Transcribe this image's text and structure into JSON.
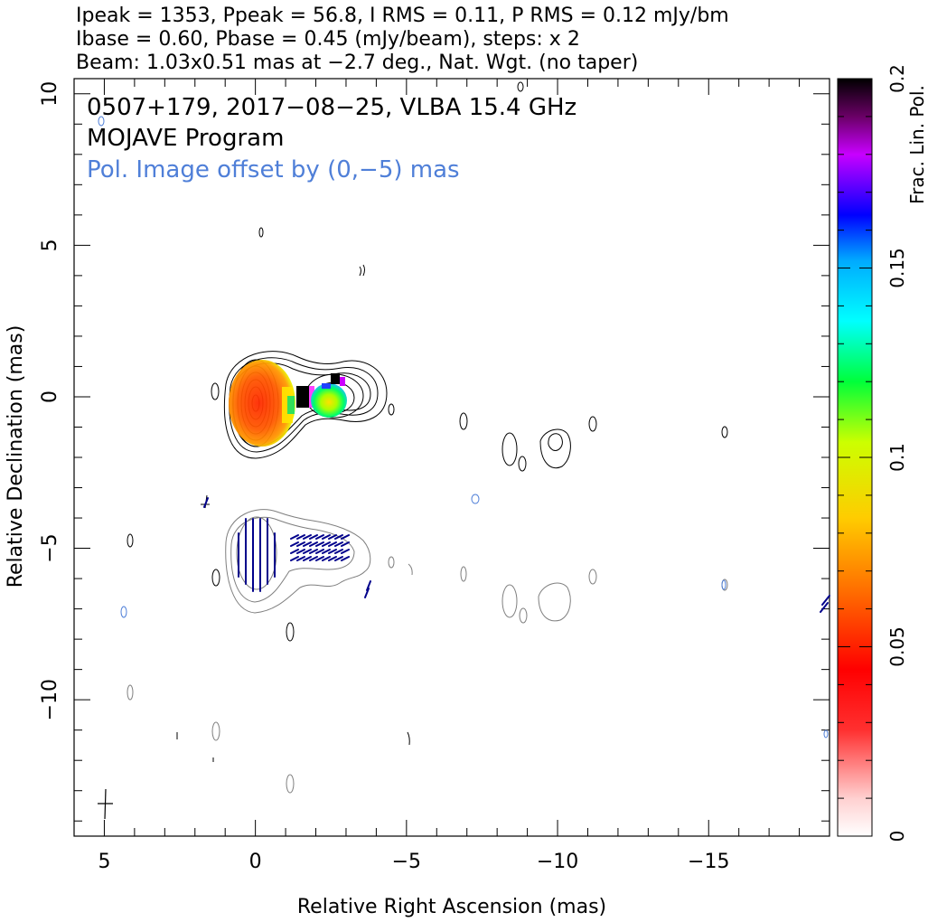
{
  "header": {
    "line1": "Ipeak = 1353, Ppeak = 56.8, I RMS = 0.11, P RMS = 0.12 mJy/bm",
    "line2": "Ibase = 0.60, Pbase = 0.45 (mJy/beam), steps: x 2",
    "line3": "Beam: 1.03x0.51 mas at −2.7 deg., Nat. Wgt. (no taper)"
  },
  "plot": {
    "title_line1": "0507+179, 2017−08−25, VLBA 15.4 GHz",
    "title_line2": "MOJAVE Program",
    "title_line3": "Pol. Image offset by (0,−5) mas"
  },
  "colorbar": {
    "label": "Frac. Lin. Pol.",
    "ticks": [
      "0",
      "0.05",
      "0.1",
      "0.15",
      "0.2"
    ]
  },
  "colors": {
    "total_intensity_contours": "#000000",
    "polarization_contours": "#7f7f7f",
    "evpa_ticks": "#00008b",
    "offset_label": "#4f7fd8"
  },
  "chart_data": {
    "type": "contour",
    "title": "0507+179, 2017−08−25, VLBA 15.4 GHz",
    "xlabel": "Relative Right Ascension (mas)",
    "ylabel": "Relative Declination (mas)",
    "xlim": [
      6,
      -19
    ],
    "ylim": [
      -14.5,
      10.5
    ],
    "x_ticks": [
      5,
      0,
      -5,
      -10,
      -15
    ],
    "y_ticks": [
      10,
      5,
      0,
      -5,
      -10
    ],
    "x_tick_labels": [
      "5",
      "0",
      "−5",
      "−10",
      "−15"
    ],
    "y_tick_labels": [
      "10",
      "5",
      "0",
      "−5",
      "−10"
    ],
    "stats": {
      "Ipeak_mJy_per_beam": 1353,
      "Ppeak_mJy_per_beam": 56.8,
      "I_RMS": 0.11,
      "P_RMS": 0.12,
      "Ibase": 0.6,
      "Pbase": 0.45,
      "contour_step_factor": 2,
      "beam_major_mas": 1.03,
      "beam_minor_mas": 0.51,
      "beam_pa_deg": -2.7,
      "weighting": "Nat. Wgt. (no taper)"
    },
    "pol_offset_mas": [
      0,
      -5
    ],
    "colorbar_range": [
      0,
      0.2
    ],
    "components": [
      {
        "x": 0.0,
        "y": 0.0,
        "frac_pol": 0.055
      },
      {
        "x": -1.5,
        "y": -0.2,
        "frac_pol": 0.2
      },
      {
        "x": -2.6,
        "y": 0.1,
        "frac_pol": 0.09
      },
      {
        "x": -2.7,
        "y": 0.7,
        "frac_pol": 0.18
      }
    ]
  }
}
